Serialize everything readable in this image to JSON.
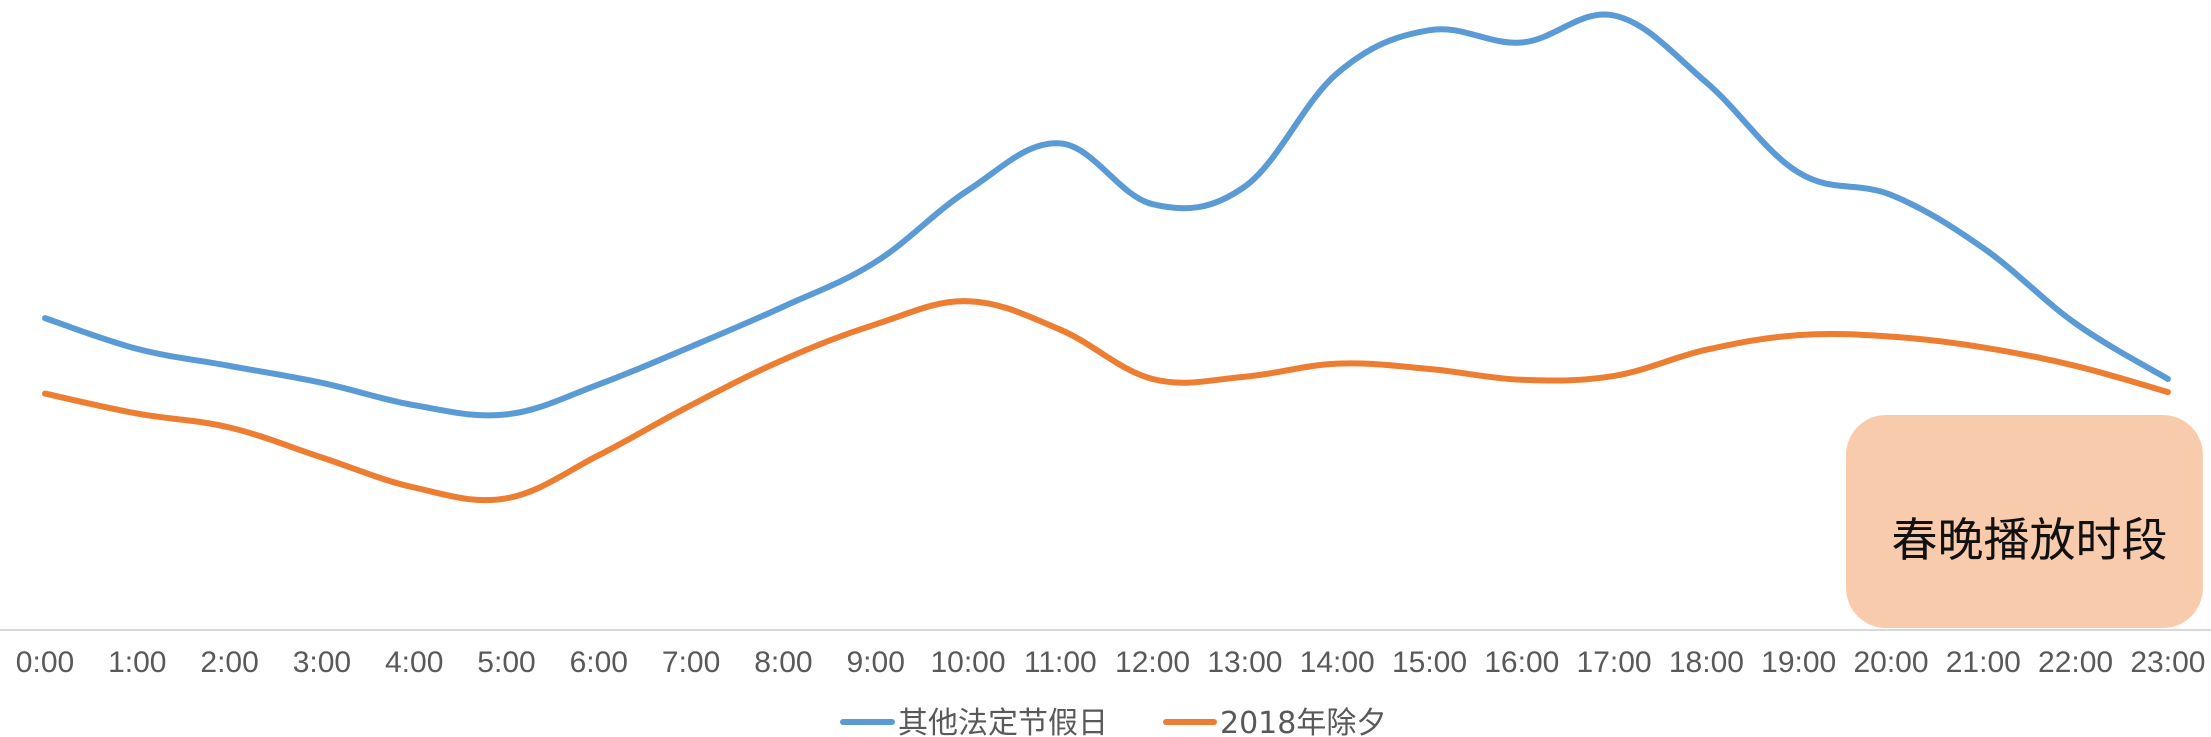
{
  "chart_data": {
    "type": "line",
    "categories": [
      "0:00",
      "1:00",
      "2:00",
      "3:00",
      "4:00",
      "5:00",
      "6:00",
      "7:00",
      "8:00",
      "9:00",
      "10:00",
      "11:00",
      "12:00",
      "13:00",
      "14:00",
      "15:00",
      "16:00",
      "17:00",
      "18:00",
      "19:00",
      "20:00",
      "21:00",
      "22:00",
      "23:00"
    ],
    "series": [
      {
        "name": "其他法定节假日",
        "color": "#5B9BD5",
        "values": [
          405,
          365,
          343,
          321,
          292,
          280,
          319,
          368,
          420,
          478,
          571,
          632,
          553,
          576,
          723,
          779,
          763,
          798,
          711,
          594,
          565,
          496,
          398,
          326
        ]
      },
      {
        "name": "2018年除夕",
        "color": "#ED7D31",
        "values": [
          307,
          281,
          263,
          224,
          185,
          171,
          227,
          292,
          351,
          397,
          427,
          390,
          326,
          329,
          346,
          339,
          325,
          330,
          364,
          383,
          381,
          367,
          343,
          309
        ]
      }
    ],
    "highlight": {
      "label": "春晚播放时段",
      "start": "20:00",
      "end": "23:00",
      "color": "#F8CBAD"
    },
    "ylim": [
      0,
      820
    ],
    "grid": false,
    "legend_position": "bottom"
  }
}
